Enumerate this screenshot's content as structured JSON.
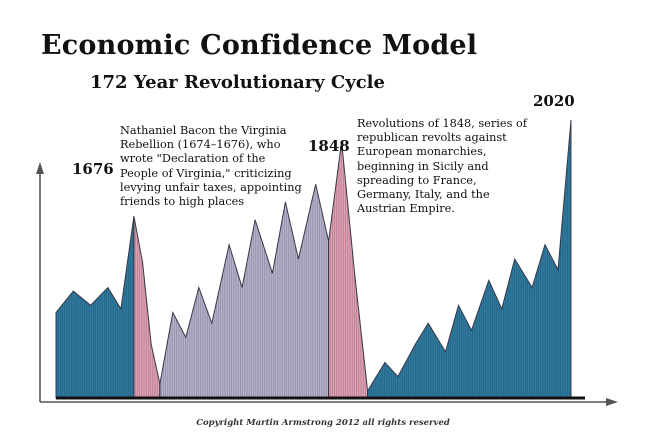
{
  "header": {
    "title": "Economic Confidence Model",
    "subtitle": "172 Year Revolutionary Cycle"
  },
  "chart_data": {
    "type": "area",
    "title": "Economic Confidence Model",
    "subtitle": "172 Year Revolutionary Cycle",
    "xlabel": "",
    "ylabel": "",
    "grid": false,
    "year_labels": [
      "1676",
      "1848",
      "2020"
    ],
    "annotations": [
      "Nathaniel Bacon the Virginia Rebellion (1674–1676), who wrote \"Declaration of the People of Virginia,\" criticizing levying unfair taxes, appointing friends to high places",
      "Revolutions of 1848, series of republican revolts against European monarchies, beginning in Sicily and spreading to France, Germany, Italy, and the Austrian Empire."
    ],
    "series": [
      {
        "name": "",
        "color": "#2e7ba0",
        "x": [
          0,
          4,
          8,
          12,
          15,
          18
        ],
        "y": [
          24,
          30,
          26,
          31,
          25,
          51
        ]
      },
      {
        "name": "",
        "color": "#e2a0b3",
        "x": [
          18,
          20,
          22,
          24
        ],
        "y": [
          51,
          38,
          15,
          4
        ]
      },
      {
        "name": "",
        "color": "#b7b2cc",
        "x": [
          24,
          27,
          30,
          33,
          36,
          40,
          43,
          46,
          50,
          53,
          56,
          60,
          63
        ],
        "y": [
          4,
          24,
          17,
          31,
          21,
          43,
          31,
          50,
          35,
          55,
          39,
          60,
          44
        ]
      },
      {
        "name": "",
        "color": "#e2a0b3",
        "x": [
          63,
          66,
          69,
          72
        ],
        "y": [
          44,
          72,
          35,
          2
        ]
      },
      {
        "name": "",
        "color": "#2e7ba0",
        "x": [
          72,
          76,
          79,
          83,
          86,
          90,
          93,
          96,
          100,
          103,
          106,
          110,
          113,
          116,
          119
        ],
        "y": [
          2,
          10,
          6,
          15,
          21,
          13,
          26,
          19,
          33,
          25,
          39,
          31,
          43,
          36,
          78
        ]
      }
    ]
  },
  "footer": {
    "copyright": "Copyright Martin Armstrong 2012 all rights reserved"
  }
}
